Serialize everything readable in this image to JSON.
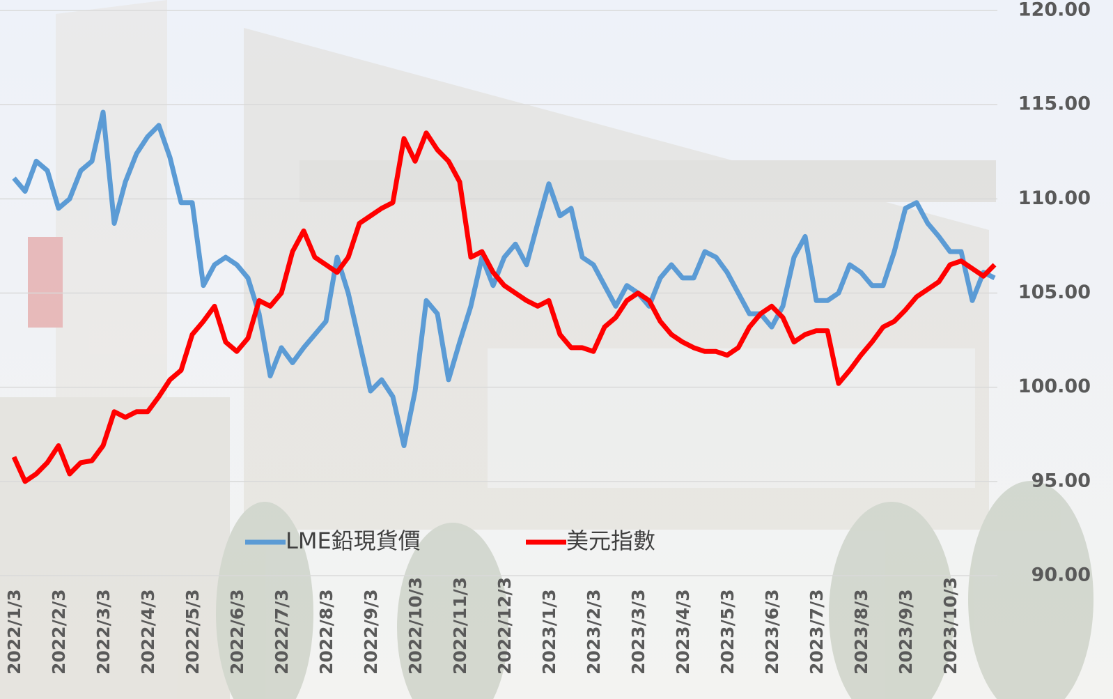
{
  "chart_data": {
    "type": "line",
    "categories": [
      "2022/1/3",
      null,
      null,
      null,
      "2022/2/3",
      null,
      null,
      null,
      "2022/3/3",
      null,
      null,
      null,
      "2022/4/3",
      null,
      null,
      null,
      "2022/5/3",
      null,
      null,
      null,
      "2022/6/3",
      null,
      null,
      null,
      "2022/7/3",
      null,
      null,
      null,
      "2022/8/3",
      null,
      null,
      null,
      "2022/9/3",
      null,
      null,
      null,
      "2022/10/3",
      null,
      null,
      null,
      "2022/11/3",
      null,
      null,
      null,
      "2022/12/3",
      null,
      null,
      null,
      "2023/1/3",
      null,
      null,
      null,
      "2023/2/3",
      null,
      null,
      null,
      "2023/3/3",
      null,
      null,
      null,
      "2023/4/3",
      null,
      null,
      null,
      "2023/5/3",
      null,
      null,
      null,
      "2023/6/3",
      null,
      null,
      null,
      "2023/7/3",
      null,
      null,
      null,
      "2023/8/3",
      null,
      null,
      null,
      "2023/9/3",
      null,
      null,
      null,
      "2023/10/3",
      null,
      null,
      null,
      null
    ],
    "series": [
      {
        "name": "LME鉛現貨價",
        "color": "#5b9bd5",
        "values": [
          111.1,
          110.4,
          112.0,
          111.5,
          109.5,
          110.0,
          111.5,
          112.0,
          114.6,
          108.7,
          110.9,
          112.4,
          113.3,
          113.9,
          112.2,
          109.8,
          109.8,
          105.4,
          106.5,
          106.9,
          106.5,
          105.8,
          103.9,
          100.6,
          102.1,
          101.3,
          102.1,
          102.8,
          103.5,
          106.9,
          105.0,
          102.4,
          99.8,
          100.4,
          99.5,
          96.9,
          99.8,
          104.6,
          103.9,
          100.4,
          102.4,
          104.3,
          106.9,
          105.4,
          106.9,
          107.6,
          106.5,
          108.7,
          110.8,
          109.1,
          109.5,
          106.9,
          106.5,
          105.4,
          104.3,
          105.4,
          105.0,
          104.3,
          105.8,
          106.5,
          105.8,
          105.8,
          107.2,
          106.9,
          106.1,
          105.0,
          103.9,
          103.9,
          103.2,
          104.3,
          106.9,
          108.0,
          104.6,
          104.6,
          105.0,
          106.5,
          106.1,
          105.4,
          105.4,
          107.2,
          109.5,
          109.8,
          108.7,
          108.0,
          107.2,
          107.2,
          104.6,
          106.1,
          105.8
        ]
      },
      {
        "name": "美元指數",
        "color": "#ff0000",
        "values": [
          96.3,
          95.0,
          95.4,
          96.0,
          96.9,
          95.4,
          96.0,
          96.1,
          96.9,
          98.7,
          98.4,
          98.7,
          98.7,
          99.5,
          100.4,
          100.9,
          102.8,
          103.5,
          104.3,
          102.4,
          101.9,
          102.6,
          104.6,
          104.3,
          105.0,
          107.2,
          108.3,
          106.9,
          106.5,
          106.1,
          106.9,
          108.7,
          109.1,
          109.5,
          109.8,
          113.2,
          112.0,
          113.5,
          112.6,
          112.0,
          110.9,
          106.9,
          107.2,
          106.1,
          105.4,
          105.0,
          104.6,
          104.3,
          104.6,
          102.8,
          102.1,
          102.1,
          101.9,
          103.2,
          103.7,
          104.6,
          105.0,
          104.6,
          103.5,
          102.8,
          102.4,
          102.1,
          101.9,
          101.9,
          101.7,
          102.1,
          103.2,
          103.9,
          104.3,
          103.7,
          102.4,
          102.8,
          103.0,
          103.0,
          100.2,
          100.9,
          101.7,
          102.4,
          103.2,
          103.5,
          104.1,
          104.8,
          105.2,
          105.6,
          106.5,
          106.7,
          106.3,
          105.9,
          106.5
        ]
      }
    ],
    "ylim": [
      90,
      120
    ],
    "yticks": [
      {
        "value": 90,
        "label": "90.00"
      },
      {
        "value": 95,
        "label": "95.00"
      },
      {
        "value": 100,
        "label": "100.00"
      },
      {
        "value": 105,
        "label": "105.00"
      },
      {
        "value": 110,
        "label": "110.00"
      },
      {
        "value": 115,
        "label": "115.00"
      },
      {
        "value": 120,
        "label": "120.00"
      }
    ],
    "grid": true
  }
}
